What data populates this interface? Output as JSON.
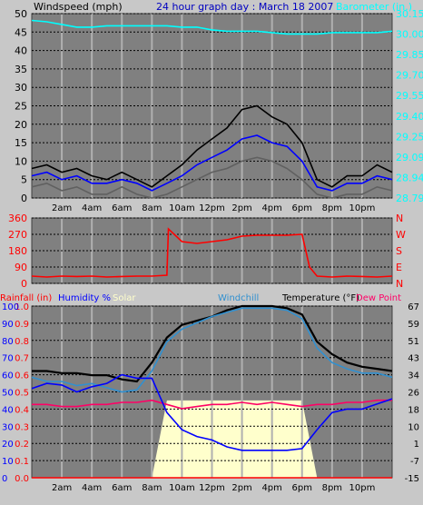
{
  "chart_data": [
    {
      "type": "line",
      "title": "24 hour graph day : March 18 2007",
      "ylabel_left": "Windspeed (mph)",
      "ylabel_right": "Barometer (in.)",
      "ylim_left": [
        0,
        50
      ],
      "ylim_right": [
        28.79,
        30.15
      ],
      "left_ticks": [
        "0",
        "5",
        "10",
        "15",
        "20",
        "25",
        "30",
        "35",
        "40",
        "45",
        "50"
      ],
      "right_ticks": [
        "28.79",
        "28.94",
        "29.09",
        "29.25",
        "29.40",
        "29.55",
        "29.70",
        "29.85",
        "30.00",
        "30.15"
      ],
      "x_ticks": [
        "2am",
        "4am",
        "6am",
        "8am",
        "10am",
        "12pm",
        "2pm",
        "4pm",
        "6pm",
        "8pm",
        "10pm"
      ],
      "x": [
        0,
        1,
        2,
        3,
        4,
        5,
        6,
        7,
        8,
        9,
        10,
        11,
        12,
        13,
        14,
        15,
        16,
        17,
        18,
        19,
        20,
        21,
        22,
        23,
        24
      ],
      "series": [
        {
          "role": "wind-gust",
          "color": "#000000",
          "values": [
            8,
            9,
            7,
            8,
            6,
            5,
            7,
            5,
            3,
            6,
            9,
            13,
            16,
            19,
            24,
            25,
            22,
            20,
            15,
            5,
            3,
            6,
            6,
            9,
            7
          ]
        },
        {
          "role": "wind-average",
          "color": "#0000ff",
          "values": [
            6,
            7,
            5,
            6,
            4,
            4,
            5,
            4,
            2,
            4,
            6,
            9,
            11,
            13,
            16,
            17,
            15,
            14,
            10,
            3,
            2,
            4,
            4,
            6,
            5
          ]
        },
        {
          "role": "wind-lulls",
          "color": "#606060",
          "values": [
            3,
            4,
            2,
            3,
            1,
            1,
            3,
            1,
            0,
            1,
            3,
            5,
            7,
            8,
            10,
            11,
            10,
            8,
            5,
            1,
            0,
            1,
            1,
            3,
            2
          ]
        },
        {
          "role": "barometer",
          "color": "#00ffff",
          "axis": "right",
          "values": [
            30.1,
            30.09,
            30.07,
            30.05,
            30.05,
            30.06,
            30.06,
            30.06,
            30.06,
            30.06,
            30.05,
            30.05,
            30.03,
            30.02,
            30.02,
            30.02,
            30.01,
            30.0,
            30.0,
            30.0,
            30.01,
            30.01,
            30.01,
            30.01,
            30.02
          ]
        }
      ]
    },
    {
      "type": "scatter",
      "ylim": [
        0,
        360
      ],
      "left_ticks": [
        "0",
        "90",
        "180",
        "270",
        "360"
      ],
      "right_ticks": [
        "N",
        "E",
        "S",
        "W",
        "N"
      ],
      "x_ticks": [
        "2am",
        "4am",
        "6am",
        "8am",
        "10am",
        "12pm",
        "2pm",
        "4pm",
        "6pm",
        "8pm",
        "10pm"
      ],
      "series": [
        {
          "role": "wind-direction",
          "color": "#ff0000",
          "x": [
            0,
            1,
            2,
            3,
            4,
            5,
            6,
            7,
            8,
            9,
            9.1,
            10,
            11,
            12,
            13,
            14,
            15,
            16,
            17,
            18,
            18.5,
            19,
            20,
            21,
            22,
            23,
            24
          ],
          "values": [
            40,
            35,
            40,
            38,
            40,
            35,
            38,
            40,
            40,
            45,
            300,
            230,
            220,
            230,
            240,
            260,
            265,
            265,
            265,
            270,
            90,
            40,
            35,
            40,
            38,
            35,
            40
          ]
        }
      ]
    },
    {
      "type": "line",
      "legend": [
        "Rainfall (in)",
        "Humidity %",
        "Solar",
        "Windchill",
        "Temperature (°F)",
        "Dew Point"
      ],
      "legend_colors": [
        "#ff0000",
        "#0000ff",
        "#ffffcc",
        "#3090d0",
        "#000000",
        "#ff0066"
      ],
      "ylim_temp": [
        -15,
        67
      ],
      "left_ticks_rain": [
        "0.0",
        "0.1",
        "0.2",
        "0.3",
        "0.4",
        "0.5",
        "0.6",
        "0.7",
        "0.8",
        "0.9",
        "1.0"
      ],
      "left_ticks_hum": [
        "0",
        "10",
        "20",
        "30",
        "40",
        "50",
        "60",
        "70",
        "80",
        "90",
        "100"
      ],
      "right_ticks_temp": [
        "-15",
        "-7",
        "1",
        "10",
        "18",
        "26",
        "34",
        "43",
        "51",
        "59",
        "67"
      ],
      "x_ticks": [
        "2am",
        "4am",
        "6am",
        "8am",
        "10am",
        "12pm",
        "2pm",
        "4pm",
        "6pm",
        "8pm",
        "10pm"
      ],
      "x": [
        0,
        1,
        2,
        3,
        4,
        5,
        6,
        7,
        8,
        9,
        10,
        11,
        12,
        13,
        14,
        15,
        16,
        17,
        18,
        19,
        20,
        21,
        22,
        23,
        24
      ],
      "series": [
        {
          "role": "temperature",
          "color": "#000000",
          "axis": "right",
          "values": [
            36,
            36,
            35,
            35,
            34,
            34,
            32,
            31,
            40,
            52,
            58,
            60,
            62,
            65,
            67,
            67,
            67,
            66,
            63,
            50,
            44,
            40,
            38,
            37,
            36
          ]
        },
        {
          "role": "windchill",
          "color": "#3090d0",
          "axis": "right",
          "values": [
            33,
            31,
            31,
            29,
            30,
            28,
            26,
            27,
            36,
            50,
            56,
            59,
            62,
            64,
            66,
            66,
            66,
            65,
            61,
            47,
            40,
            37,
            35,
            35,
            33
          ]
        },
        {
          "role": "dew-point",
          "color": "#ff0066",
          "axis": "right",
          "values": [
            20,
            20,
            19,
            19,
            20,
            20,
            21,
            21,
            22,
            20,
            18,
            19,
            20,
            20,
            21,
            20,
            21,
            20,
            19,
            20,
            20,
            21,
            21,
            22,
            22
          ]
        },
        {
          "role": "humidity",
          "color": "#0000ff",
          "axis": "hum",
          "values": [
            52,
            55,
            54,
            50,
            53,
            55,
            60,
            58,
            58,
            38,
            28,
            24,
            22,
            18,
            16,
            16,
            16,
            16,
            17,
            28,
            38,
            40,
            40,
            43,
            46
          ]
        },
        {
          "role": "solar",
          "color": "#ffffcc",
          "axis": "hum",
          "values": [
            0,
            0,
            0,
            0,
            0,
            0,
            0,
            0,
            0,
            45,
            45,
            45,
            45,
            45,
            45,
            45,
            45,
            45,
            45,
            0,
            0,
            0,
            0,
            0,
            0
          ]
        },
        {
          "role": "rainfall",
          "color": "#ff0000",
          "axis": "rain",
          "values": [
            0,
            0,
            0,
            0,
            0,
            0,
            0,
            0,
            0,
            0,
            0,
            0,
            0,
            0,
            0,
            0,
            0,
            0,
            0,
            0,
            0,
            0,
            0,
            0,
            0
          ]
        }
      ]
    }
  ]
}
